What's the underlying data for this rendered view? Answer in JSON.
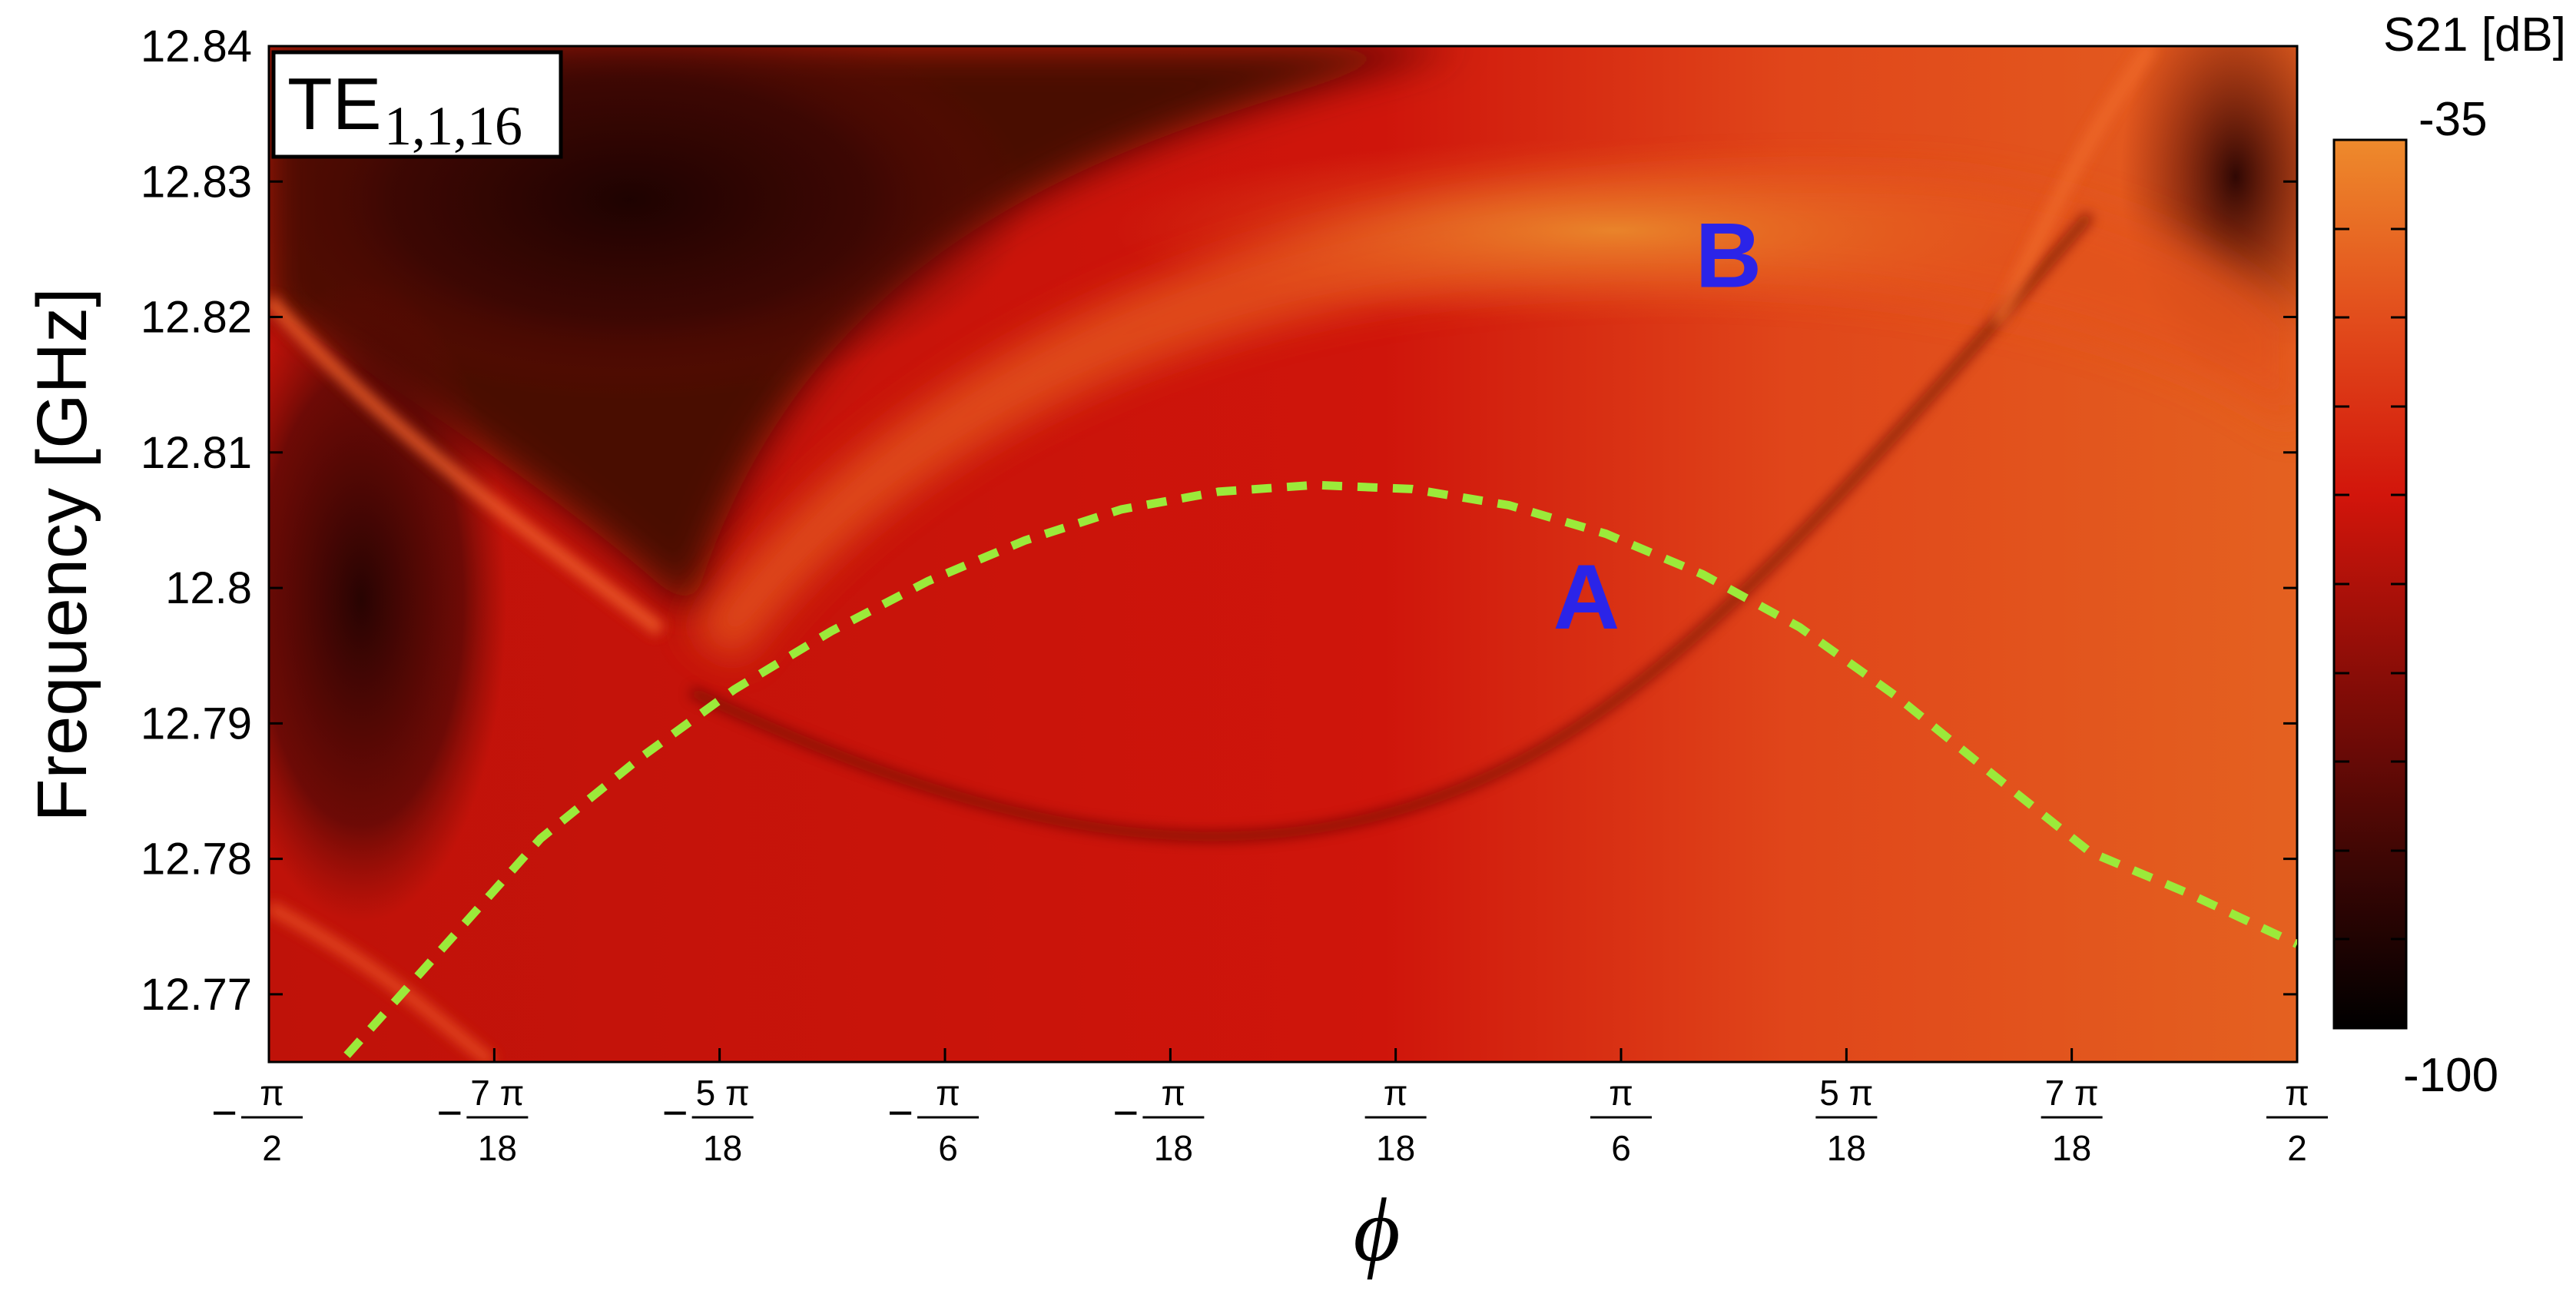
{
  "chart_data": {
    "type": "heatmap",
    "ylabel": "Frequency [GHz]",
    "xlabel": "ϕ",
    "ylim": [
      12.765,
      12.84
    ],
    "xlim": [
      -1.5708,
      1.5708
    ],
    "yticks": [
      {
        "value": 12.77,
        "label": "12.77"
      },
      {
        "value": 12.78,
        "label": "12.78"
      },
      {
        "value": 12.79,
        "label": "12.79"
      },
      {
        "value": 12.8,
        "label": "12.8"
      },
      {
        "value": 12.81,
        "label": "12.81"
      },
      {
        "value": 12.82,
        "label": "12.82"
      },
      {
        "value": 12.83,
        "label": "12.83"
      },
      {
        "value": 12.84,
        "label": "12.84"
      }
    ],
    "xticks": [
      {
        "value": -1.5708,
        "sign": "−",
        "num": "π",
        "den": "2"
      },
      {
        "value": -1.2217,
        "sign": "−",
        "num": "7 π",
        "den": "18"
      },
      {
        "value": -0.8727,
        "sign": "−",
        "num": "5 π",
        "den": "18"
      },
      {
        "value": -0.5236,
        "sign": "−",
        "num": "π",
        "den": "6"
      },
      {
        "value": -0.1745,
        "sign": "−",
        "num": "π",
        "den": "18"
      },
      {
        "value": 0.1745,
        "sign": "",
        "num": "π",
        "den": "18"
      },
      {
        "value": 0.5236,
        "sign": "",
        "num": "π",
        "den": "6"
      },
      {
        "value": 0.8727,
        "sign": "",
        "num": "5 π",
        "den": "18"
      },
      {
        "value": 1.2217,
        "sign": "",
        "num": "7 π",
        "den": "18"
      },
      {
        "value": 1.5708,
        "sign": "",
        "num": "π",
        "den": "2"
      }
    ],
    "mode_label": {
      "base": "TE",
      "sub": "1,1,16"
    },
    "colorbar": {
      "title": "S21 [dB]",
      "max_label": "-35",
      "min_label": "-100",
      "range": [
        -100,
        -35
      ],
      "colors": [
        "#000000",
        "#5a0a05",
        "#b5100a",
        "#dc1c0e",
        "#e6501e",
        "#ee8a2c"
      ]
    },
    "dashed_curve": {
      "color": "#9bea3a",
      "phi": [
        -1.45,
        -1.3,
        -1.15,
        -1.0,
        -0.85,
        -0.7,
        -0.55,
        -0.4,
        -0.25,
        -0.1,
        0.05,
        0.2,
        0.35,
        0.5,
        0.65,
        0.8,
        0.95,
        1.1,
        1.25,
        1.4,
        1.5708
      ],
      "freq": [
        12.7655,
        12.7735,
        12.7815,
        12.7873,
        12.7925,
        12.7968,
        12.8005,
        12.8035,
        12.8058,
        12.8071,
        12.8076,
        12.8073,
        12.8061,
        12.804,
        12.801,
        12.7971,
        12.792,
        12.7862,
        12.7805,
        12.7775,
        12.7737
      ]
    },
    "annotations": [
      {
        "text": "A",
        "phi": 0.47,
        "freq": 12.7995,
        "color": "#2b24e8"
      },
      {
        "text": "B",
        "phi": 0.69,
        "freq": 12.8247,
        "color": "#2b24e8"
      }
    ]
  }
}
